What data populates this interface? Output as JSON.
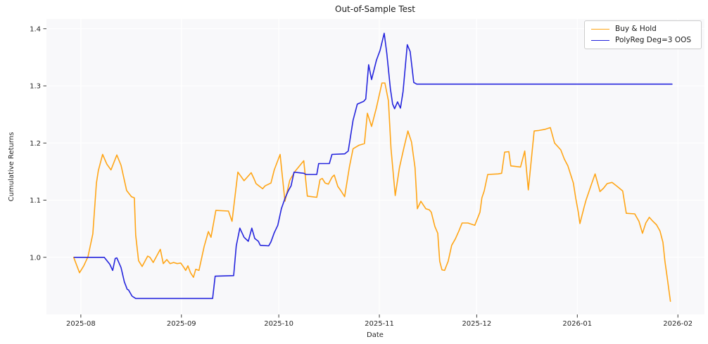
{
  "figure": {
    "title": "Out-of-Sample Test",
    "x_label": "Date",
    "y_label": "Cumulative Returns"
  },
  "legend": {
    "items": [
      {
        "label": "Buy & Hold",
        "color": "#ffa516"
      },
      {
        "label": "PolyReg Deg=3 OOS",
        "color": "#2424dd"
      }
    ]
  },
  "colors": {
    "axes_background": "#f8f8fa",
    "grid": "#ffffff",
    "text": "#262626",
    "tick": "#262626"
  },
  "chart_data": {
    "type": "line",
    "title": "Out-of-Sample Test",
    "xlabel": "Date",
    "ylabel": "Cumulative Returns",
    "grid": true,
    "legend_position": "upper right",
    "x_unit": "days since 2025-08-01",
    "xlim": [
      -10.6,
      192.2
    ],
    "ylim": [
      0.9,
      1.417
    ],
    "x_ticks": [
      {
        "label": "2025-08",
        "day": 0
      },
      {
        "label": "2025-09",
        "day": 31
      },
      {
        "label": "2025-10",
        "day": 61
      },
      {
        "label": "2025-11",
        "day": 92
      },
      {
        "label": "2025-12",
        "day": 122
      },
      {
        "label": "2026-01",
        "day": 153
      },
      {
        "label": "2026-02",
        "day": 184
      }
    ],
    "y_ticks": [
      {
        "label": "1.0",
        "value": 1.0
      },
      {
        "label": "1.1",
        "value": 1.1
      },
      {
        "label": "1.2",
        "value": 1.2
      },
      {
        "label": "1.3",
        "value": 1.3
      },
      {
        "label": "1.4",
        "value": 1.4
      }
    ],
    "series": [
      {
        "name": "Buy & Hold",
        "color": "#ffa516",
        "points": [
          [
            -2.2,
            1.0
          ],
          [
            -0.4,
            0.973
          ],
          [
            0.9,
            0.985
          ],
          [
            2.2,
            1.001
          ],
          [
            3.7,
            1.041
          ],
          [
            4.8,
            1.13
          ],
          [
            5.4,
            1.152
          ],
          [
            6.7,
            1.18
          ],
          [
            8.0,
            1.163
          ],
          [
            9.3,
            1.153
          ],
          [
            11.1,
            1.179
          ],
          [
            12.4,
            1.161
          ],
          [
            14.1,
            1.117
          ],
          [
            15.6,
            1.106
          ],
          [
            16.5,
            1.104
          ],
          [
            16.9,
            1.039
          ],
          [
            17.8,
            0.994
          ],
          [
            18.9,
            0.984
          ],
          [
            20.6,
            1.002
          ],
          [
            21.3,
            1.0
          ],
          [
            22.3,
            0.991
          ],
          [
            24.5,
            1.014
          ],
          [
            25.4,
            0.989
          ],
          [
            26.5,
            0.996
          ],
          [
            27.5,
            0.989
          ],
          [
            28.6,
            0.991
          ],
          [
            29.7,
            0.989
          ],
          [
            30.8,
            0.99
          ],
          [
            31.9,
            0.981
          ],
          [
            32.3,
            0.977
          ],
          [
            33.0,
            0.985
          ],
          [
            33.8,
            0.973
          ],
          [
            34.7,
            0.965
          ],
          [
            35.4,
            0.979
          ],
          [
            36.4,
            0.977
          ],
          [
            38.0,
            1.019
          ],
          [
            39.3,
            1.045
          ],
          [
            40.1,
            1.035
          ],
          [
            41.6,
            1.082
          ],
          [
            45.5,
            1.081
          ],
          [
            46.6,
            1.063
          ],
          [
            48.4,
            1.149
          ],
          [
            50.3,
            1.134
          ],
          [
            52.5,
            1.148
          ],
          [
            53.4,
            1.137
          ],
          [
            54.0,
            1.129
          ],
          [
            56.0,
            1.12
          ],
          [
            56.8,
            1.125
          ],
          [
            58.6,
            1.13
          ],
          [
            59.6,
            1.153
          ],
          [
            61.4,
            1.18
          ],
          [
            62.9,
            1.098
          ],
          [
            64.4,
            1.135
          ],
          [
            66.1,
            1.151
          ],
          [
            68.7,
            1.169
          ],
          [
            69.8,
            1.107
          ],
          [
            72.7,
            1.105
          ],
          [
            73.7,
            1.136
          ],
          [
            74.4,
            1.138
          ],
          [
            75.3,
            1.13
          ],
          [
            76.3,
            1.128
          ],
          [
            77.4,
            1.14
          ],
          [
            78.1,
            1.144
          ],
          [
            79.2,
            1.124
          ],
          [
            80.2,
            1.116
          ],
          [
            81.3,
            1.106
          ],
          [
            82.8,
            1.159
          ],
          [
            83.9,
            1.19
          ],
          [
            85.7,
            1.196
          ],
          [
            87.4,
            1.199
          ],
          [
            88.3,
            1.252
          ],
          [
            89.6,
            1.229
          ],
          [
            91.1,
            1.262
          ],
          [
            92.8,
            1.305
          ],
          [
            93.7,
            1.305
          ],
          [
            94.8,
            1.274
          ],
          [
            95.6,
            1.19
          ],
          [
            96.9,
            1.108
          ],
          [
            98.2,
            1.157
          ],
          [
            99.5,
            1.19
          ],
          [
            100.8,
            1.221
          ],
          [
            101.9,
            1.202
          ],
          [
            103.0,
            1.157
          ],
          [
            103.7,
            1.085
          ],
          [
            104.8,
            1.098
          ],
          [
            106.3,
            1.085
          ],
          [
            107.4,
            1.083
          ],
          [
            108.0,
            1.079
          ],
          [
            109.1,
            1.054
          ],
          [
            110.0,
            1.042
          ],
          [
            110.6,
            0.993
          ],
          [
            111.3,
            0.978
          ],
          [
            112.1,
            0.977
          ],
          [
            113.2,
            0.993
          ],
          [
            114.3,
            1.021
          ],
          [
            115.4,
            1.032
          ],
          [
            116.5,
            1.046
          ],
          [
            117.5,
            1.06
          ],
          [
            119.3,
            1.06
          ],
          [
            121.4,
            1.056
          ],
          [
            123.0,
            1.079
          ],
          [
            123.6,
            1.104
          ],
          [
            124.3,
            1.116
          ],
          [
            125.4,
            1.145
          ],
          [
            128.6,
            1.146
          ],
          [
            129.7,
            1.147
          ],
          [
            130.6,
            1.184
          ],
          [
            131.9,
            1.185
          ],
          [
            132.5,
            1.16
          ],
          [
            135.5,
            1.158
          ],
          [
            136.8,
            1.186
          ],
          [
            137.9,
            1.118
          ],
          [
            139.7,
            1.221
          ],
          [
            141.2,
            1.222
          ],
          [
            143.1,
            1.224
          ],
          [
            144.7,
            1.227
          ],
          [
            146.0,
            1.2
          ],
          [
            147.9,
            1.188
          ],
          [
            149.0,
            1.172
          ],
          [
            150.1,
            1.16
          ],
          [
            151.8,
            1.13
          ],
          [
            152.5,
            1.104
          ],
          [
            153.3,
            1.079
          ],
          [
            153.8,
            1.059
          ],
          [
            155.1,
            1.088
          ],
          [
            155.7,
            1.1
          ],
          [
            157.2,
            1.125
          ],
          [
            158.5,
            1.146
          ],
          [
            160.0,
            1.115
          ],
          [
            161.1,
            1.121
          ],
          [
            162.2,
            1.129
          ],
          [
            163.7,
            1.131
          ],
          [
            165.3,
            1.124
          ],
          [
            167.0,
            1.116
          ],
          [
            168.1,
            1.077
          ],
          [
            170.7,
            1.076
          ],
          [
            172.0,
            1.063
          ],
          [
            173.1,
            1.042
          ],
          [
            174.1,
            1.06
          ],
          [
            175.2,
            1.07
          ],
          [
            176.3,
            1.063
          ],
          [
            177.4,
            1.057
          ],
          [
            178.5,
            1.046
          ],
          [
            179.4,
            1.026
          ],
          [
            180.0,
            0.993
          ],
          [
            180.7,
            0.965
          ],
          [
            181.7,
            0.923
          ]
        ]
      },
      {
        "name": "PolyReg Deg=3 OOS",
        "color": "#2424dd",
        "points": [
          [
            -2.0,
            1.0
          ],
          [
            7.2,
            1.0
          ],
          [
            8.9,
            0.988
          ],
          [
            9.8,
            0.977
          ],
          [
            10.6,
            0.998
          ],
          [
            11.1,
            0.999
          ],
          [
            12.4,
            0.982
          ],
          [
            13.4,
            0.957
          ],
          [
            14.3,
            0.944
          ],
          [
            14.7,
            0.943
          ],
          [
            15.8,
            0.932
          ],
          [
            16.9,
            0.928
          ],
          [
            40.6,
            0.928
          ],
          [
            41.4,
            0.967
          ],
          [
            47.1,
            0.968
          ],
          [
            47.9,
            1.02
          ],
          [
            49.0,
            1.051
          ],
          [
            50.3,
            1.035
          ],
          [
            51.6,
            1.028
          ],
          [
            52.7,
            1.051
          ],
          [
            53.6,
            1.033
          ],
          [
            54.7,
            1.028
          ],
          [
            55.3,
            1.021
          ],
          [
            57.9,
            1.02
          ],
          [
            58.6,
            1.027
          ],
          [
            59.6,
            1.043
          ],
          [
            60.7,
            1.056
          ],
          [
            61.8,
            1.085
          ],
          [
            62.9,
            1.103
          ],
          [
            64.0,
            1.117
          ],
          [
            64.8,
            1.125
          ],
          [
            65.7,
            1.149
          ],
          [
            68.7,
            1.147
          ],
          [
            69.4,
            1.145
          ],
          [
            72.7,
            1.145
          ],
          [
            73.3,
            1.164
          ],
          [
            76.6,
            1.164
          ],
          [
            77.4,
            1.18
          ],
          [
            81.3,
            1.181
          ],
          [
            82.4,
            1.186
          ],
          [
            83.9,
            1.24
          ],
          [
            85.2,
            1.268
          ],
          [
            87.2,
            1.273
          ],
          [
            87.8,
            1.277
          ],
          [
            88.7,
            1.337
          ],
          [
            89.6,
            1.311
          ],
          [
            91.1,
            1.345
          ],
          [
            92.2,
            1.362
          ],
          [
            93.5,
            1.392
          ],
          [
            94.3,
            1.357
          ],
          [
            95.4,
            1.295
          ],
          [
            96.1,
            1.268
          ],
          [
            96.7,
            1.26
          ],
          [
            97.6,
            1.272
          ],
          [
            98.5,
            1.261
          ],
          [
            99.3,
            1.29
          ],
          [
            100.6,
            1.372
          ],
          [
            101.5,
            1.36
          ],
          [
            102.6,
            1.306
          ],
          [
            103.5,
            1.303
          ],
          [
            182.2,
            1.303
          ]
        ]
      }
    ]
  }
}
